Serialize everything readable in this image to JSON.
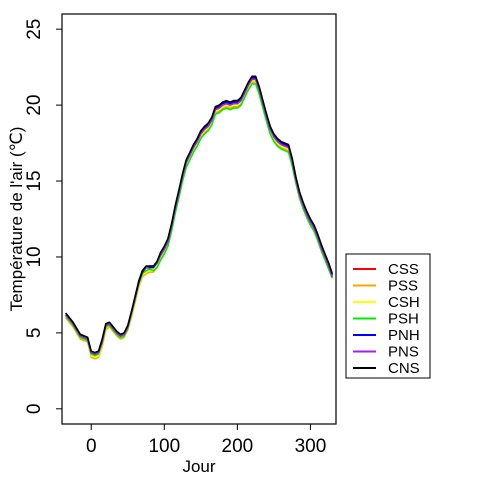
{
  "chart_data": {
    "type": "line",
    "title": "",
    "xlabel": "Jour",
    "ylabel": "Température de l'air (℃)",
    "xlim": [
      -40,
      335
    ],
    "ylim": [
      -1,
      26
    ],
    "xticks": [
      0,
      100,
      200,
      300
    ],
    "yticks": [
      0,
      5,
      10,
      15,
      20,
      25
    ],
    "grid": false,
    "legend": "bottom-right",
    "x": [
      -35,
      -25,
      -15,
      -5,
      0,
      5,
      10,
      15,
      20,
      25,
      30,
      35,
      40,
      45,
      50,
      55,
      60,
      65,
      70,
      75,
      80,
      85,
      90,
      95,
      100,
      105,
      110,
      115,
      120,
      125,
      130,
      135,
      140,
      145,
      150,
      155,
      160,
      165,
      170,
      175,
      180,
      185,
      190,
      195,
      200,
      205,
      210,
      215,
      220,
      225,
      230,
      235,
      240,
      245,
      250,
      255,
      260,
      265,
      270,
      275,
      280,
      285,
      290,
      295,
      300,
      305,
      310,
      315,
      320,
      325,
      330
    ],
    "series": [
      {
        "name": "CSS",
        "color": "#ff0000",
        "values": [
          6.2,
          5.6,
          4.8,
          4.6,
          3.7,
          3.6,
          3.7,
          4.5,
          5.5,
          5.6,
          5.3,
          5.0,
          4.8,
          4.9,
          5.4,
          6.3,
          7.3,
          8.3,
          9.0,
          9.3,
          9.3,
          9.3,
          9.6,
          10.2,
          10.6,
          11.0,
          12.0,
          13.2,
          14.2,
          15.3,
          16.2,
          16.7,
          17.2,
          17.6,
          18.1,
          18.4,
          18.6,
          19.0,
          19.7,
          19.8,
          20.0,
          20.1,
          20.0,
          20.1,
          20.1,
          20.3,
          20.8,
          21.3,
          21.7,
          21.7,
          21.0,
          20.1,
          19.2,
          18.4,
          17.9,
          17.6,
          17.4,
          17.3,
          17.2,
          16.3,
          15.1,
          14.1,
          13.4,
          12.8,
          12.3,
          11.9,
          11.3,
          10.6,
          10.0,
          9.4,
          8.7
        ]
      },
      {
        "name": "PSS",
        "color": "#ffa500",
        "values": [
          6.0,
          5.4,
          4.6,
          4.4,
          3.4,
          3.3,
          3.4,
          4.1,
          5.2,
          5.4,
          5.1,
          4.8,
          4.6,
          4.7,
          5.2,
          6.0,
          7.0,
          8.0,
          8.7,
          8.9,
          9.0,
          9.0,
          9.3,
          9.9,
          10.3,
          10.8,
          11.8,
          13.0,
          14.0,
          15.1,
          16.0,
          16.5,
          17.0,
          17.4,
          17.9,
          18.2,
          18.4,
          18.8,
          19.5,
          19.6,
          19.8,
          19.9,
          19.8,
          19.9,
          19.9,
          20.1,
          20.6,
          21.1,
          21.5,
          21.5,
          20.8,
          19.9,
          19.0,
          18.2,
          17.7,
          17.4,
          17.2,
          17.1,
          17.0,
          16.1,
          14.9,
          13.9,
          13.2,
          12.6,
          12.1,
          11.7,
          11.1,
          10.4,
          9.8,
          9.2,
          8.6
        ]
      },
      {
        "name": "CSH",
        "color": "#ffff00",
        "values": [
          6.1,
          5.5,
          4.7,
          4.5,
          3.5,
          3.4,
          3.5,
          4.2,
          5.3,
          5.5,
          5.2,
          4.9,
          4.7,
          4.8,
          5.3,
          6.1,
          7.1,
          8.1,
          8.8,
          9.0,
          9.1,
          9.1,
          9.4,
          10.0,
          10.4,
          10.9,
          11.9,
          13.1,
          14.1,
          15.2,
          16.1,
          16.6,
          17.1,
          17.5,
          18.0,
          18.3,
          18.5,
          18.9,
          19.6,
          19.7,
          19.9,
          20.0,
          19.9,
          20.0,
          20.0,
          20.2,
          20.7,
          21.2,
          21.6,
          21.6,
          20.9,
          20.0,
          19.1,
          18.3,
          17.8,
          17.5,
          17.3,
          17.2,
          17.1,
          16.2,
          15.0,
          14.0,
          13.3,
          12.7,
          12.2,
          11.8,
          11.2,
          10.5,
          9.9,
          9.3,
          8.7
        ]
      },
      {
        "name": "PSH",
        "color": "#00ee00",
        "values": [
          6.1,
          5.5,
          4.7,
          4.5,
          3.6,
          3.5,
          3.6,
          4.3,
          5.4,
          5.5,
          5.2,
          4.9,
          4.7,
          4.8,
          5.3,
          6.2,
          7.2,
          8.2,
          8.9,
          9.1,
          9.2,
          9.1,
          9.3,
          9.8,
          10.2,
          10.7,
          11.7,
          12.9,
          13.9,
          15.0,
          15.9,
          16.4,
          16.9,
          17.3,
          17.8,
          18.1,
          18.3,
          18.7,
          19.4,
          19.5,
          19.7,
          19.8,
          19.7,
          19.8,
          19.8,
          20.0,
          20.5,
          21.0,
          21.4,
          21.4,
          20.7,
          19.8,
          18.9,
          18.1,
          17.6,
          17.3,
          17.1,
          17.0,
          16.9,
          16.0,
          14.9,
          13.9,
          13.2,
          12.6,
          12.1,
          11.7,
          11.1,
          10.4,
          9.8,
          9.2,
          8.6
        ]
      },
      {
        "name": "PNH",
        "color": "#0000ff",
        "values": [
          6.3,
          5.7,
          4.9,
          4.7,
          3.7,
          3.6,
          3.7,
          4.5,
          5.5,
          5.6,
          5.3,
          5.0,
          4.8,
          4.9,
          5.4,
          6.3,
          7.3,
          8.3,
          9.0,
          9.3,
          9.3,
          9.3,
          9.6,
          10.2,
          10.6,
          11.1,
          12.1,
          13.3,
          14.3,
          15.4,
          16.3,
          16.8,
          17.3,
          17.7,
          18.2,
          18.5,
          18.7,
          19.1,
          19.8,
          19.9,
          20.1,
          20.2,
          20.1,
          20.2,
          20.2,
          20.4,
          20.9,
          21.4,
          21.8,
          21.8,
          21.1,
          20.2,
          19.3,
          18.5,
          18.0,
          17.7,
          17.5,
          17.4,
          17.3,
          16.4,
          15.2,
          14.2,
          13.5,
          12.9,
          12.4,
          12.0,
          11.4,
          10.7,
          10.1,
          9.5,
          8.8
        ]
      },
      {
        "name": "PNS",
        "color": "#a020f0",
        "values": [
          6.2,
          5.6,
          4.8,
          4.6,
          3.7,
          3.6,
          3.7,
          4.4,
          5.5,
          5.6,
          5.3,
          5.0,
          4.8,
          4.9,
          5.4,
          6.3,
          7.3,
          8.4,
          9.1,
          9.3,
          9.4,
          9.4,
          9.6,
          10.1,
          10.5,
          11.0,
          12.0,
          13.2,
          14.2,
          15.3,
          16.2,
          16.7,
          17.2,
          17.6,
          18.1,
          18.4,
          18.6,
          19.0,
          19.7,
          19.8,
          20.0,
          20.1,
          20.0,
          20.1,
          20.1,
          20.3,
          20.8,
          21.3,
          21.7,
          21.7,
          21.0,
          20.1,
          19.2,
          18.4,
          17.9,
          17.6,
          17.4,
          17.3,
          17.2,
          16.3,
          15.1,
          14.1,
          13.4,
          12.8,
          12.3,
          11.9,
          11.3,
          10.6,
          10.0,
          9.4,
          8.7
        ]
      },
      {
        "name": "CNS",
        "color": "#000000",
        "values": [
          6.3,
          5.7,
          4.9,
          4.7,
          3.8,
          3.7,
          3.8,
          4.6,
          5.6,
          5.7,
          5.4,
          5.1,
          4.9,
          5.0,
          5.5,
          6.4,
          7.4,
          8.4,
          9.1,
          9.4,
          9.4,
          9.4,
          9.7,
          10.3,
          10.7,
          11.2,
          12.2,
          13.4,
          14.4,
          15.5,
          16.4,
          16.9,
          17.4,
          17.8,
          18.3,
          18.6,
          18.8,
          19.2,
          19.9,
          20.0,
          20.2,
          20.3,
          20.2,
          20.3,
          20.3,
          20.5,
          21.0,
          21.5,
          21.9,
          21.9,
          21.2,
          20.3,
          19.4,
          18.6,
          18.1,
          17.8,
          17.6,
          17.5,
          17.4,
          16.5,
          15.3,
          14.3,
          13.6,
          13.0,
          12.5,
          12.1,
          11.5,
          10.8,
          10.2,
          9.6,
          8.9
        ]
      }
    ]
  }
}
